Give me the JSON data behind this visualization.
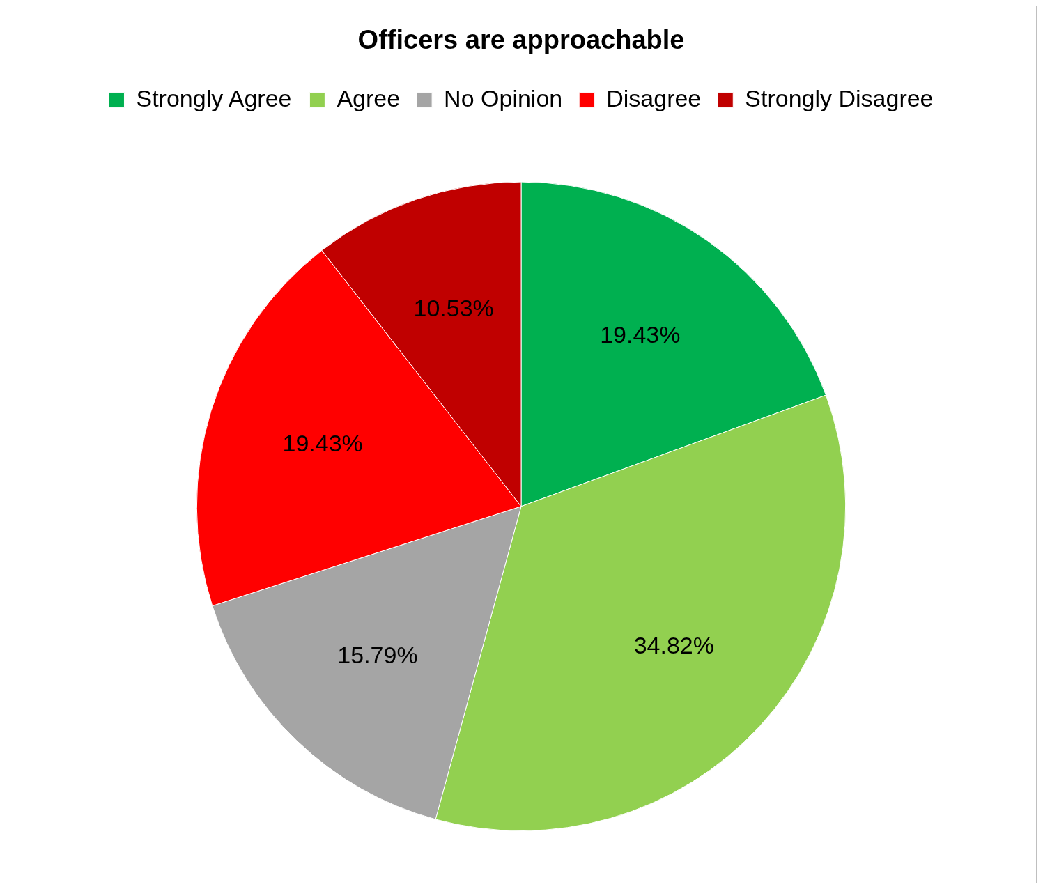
{
  "chart_data": {
    "type": "pie",
    "title": "Officers are approachable",
    "categories": [
      "Strongly Agree",
      "Agree",
      "No Opinion",
      "Disagree",
      "Strongly Disagree"
    ],
    "values": [
      19.43,
      34.82,
      15.79,
      19.43,
      10.53
    ],
    "colors": [
      "#00b050",
      "#92d050",
      "#a5a5a5",
      "#ff0000",
      "#c00000"
    ],
    "value_labels": [
      "19.43%",
      "34.82%",
      "15.79%",
      "19.43%",
      "10.53%"
    ],
    "legend": "top"
  }
}
